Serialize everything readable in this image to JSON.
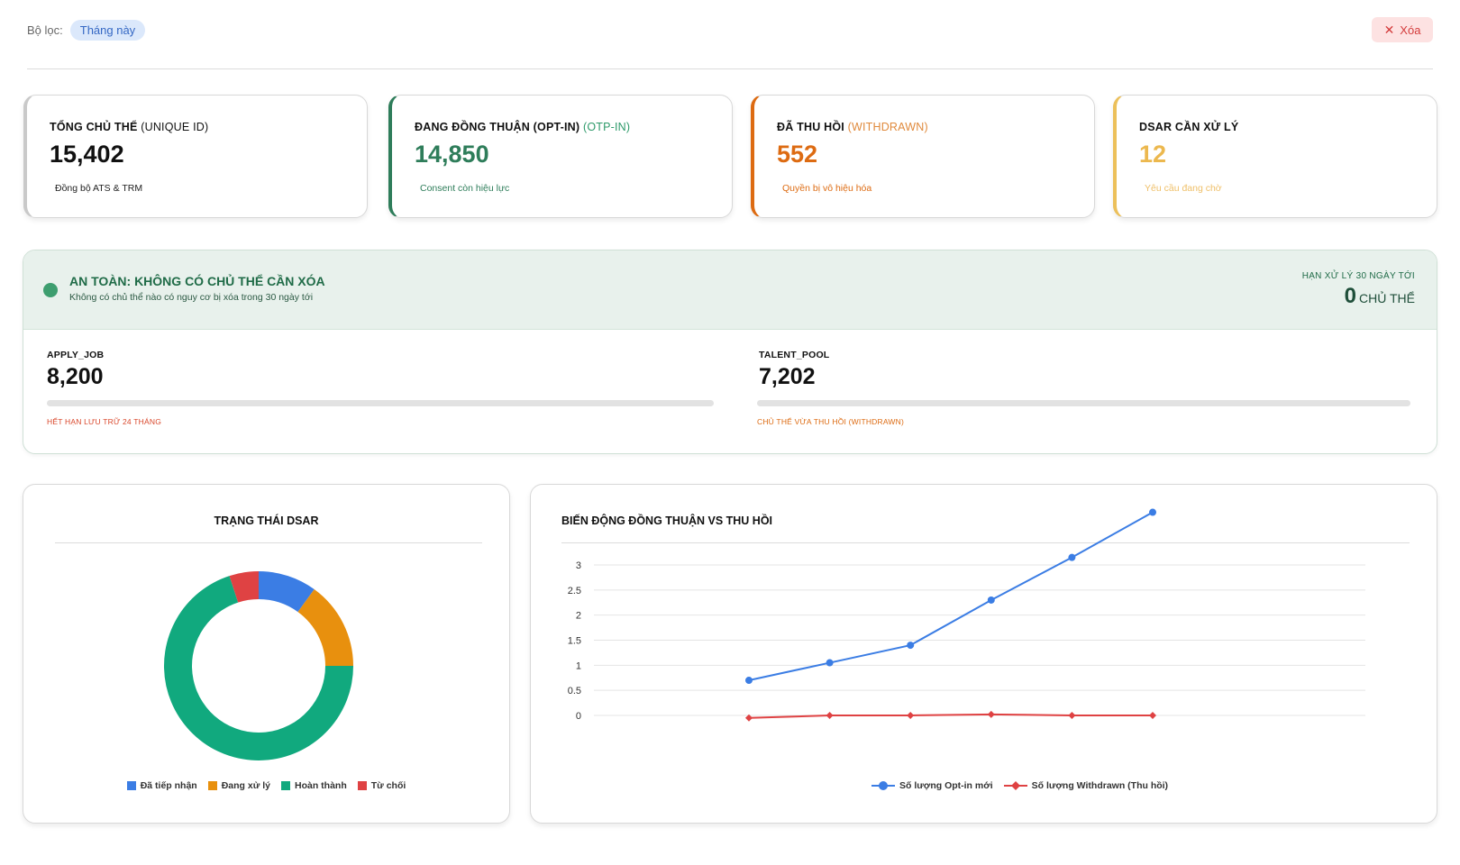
{
  "filter": {
    "label": "Bộ lọc:",
    "chip": "Tháng này",
    "clear_label": "Xóa"
  },
  "kpis": [
    {
      "title": "TỔNG CHỦ THỂ",
      "sub": "(UNIQUE ID)",
      "value": "15,402",
      "note": "Đồng bộ ATS & TRM",
      "color": "#111111",
      "sub_color": "#111111",
      "note_color": "#222222"
    },
    {
      "title": "ĐANG ĐỒNG THUẬN (OPT-IN)",
      "sub": "(OTP-IN)",
      "value": "14,850",
      "note": "Consent còn hiệu lực",
      "color": "#2e7d5a",
      "sub_color": "#2e9a6a",
      "note_color": "#2e7d5a"
    },
    {
      "title": "ĐÃ THU HỒI",
      "sub": "(WITHDRAWN)",
      "value": "552",
      "note": "Quyền bị vô hiệu hóa",
      "color": "#dd6b12",
      "sub_color": "#e08a3c",
      "note_color": "#dd6b12"
    },
    {
      "title": "DSAR CẦN XỬ LÝ",
      "sub": "",
      "value": "12",
      "note": "Yêu cầu đang chờ",
      "color": "#ecb84e",
      "sub_color": "#ecb84e",
      "note_color": "#efc06a"
    }
  ],
  "safety": {
    "title": "AN TOÀN: KHÔNG CÓ CHỦ THỂ CẦN XÓA",
    "subtitle": "Không có chủ thể nào có nguy cơ bị xóa trong 30 ngày tới",
    "deadline_label": "HẠN XỬ LÝ 30 NGÀY TỚI",
    "deadline_value": "0",
    "deadline_unit": "CHỦ THỂ",
    "segments": [
      {
        "label": "APPLY_JOB",
        "value": "8,200",
        "note": "HẾT HẠN LƯU TRỮ 24 THÁNG",
        "note_color": "#d9472b",
        "progress": 0
      },
      {
        "label": "TALENT_POOL",
        "value": "7,202",
        "note": "CHỦ THỂ VỪA THU HỒI (WITHDRAWN)",
        "note_color": "#dd6b12",
        "progress": 0
      }
    ]
  },
  "dsar_panel": {
    "title": "TRẠNG THÁI DSAR",
    "chart_data": {
      "type": "pie",
      "categories": [
        "Đã tiếp nhận",
        "Đang xử lý",
        "Hoàn thành",
        "Từ chối"
      ],
      "values": [
        10,
        15,
        70,
        5
      ],
      "colors": [
        "#3b7de4",
        "#e8900e",
        "#11a97e",
        "#df4243"
      ],
      "legend": "bottom"
    }
  },
  "trend_panel": {
    "title": "BIẾN ĐỘNG ĐỒNG THUẬN VS THU HỒI",
    "chart_data": {
      "type": "line",
      "x": [
        "",
        "",
        "",
        "",
        "",
        ""
      ],
      "yticks": [
        "0",
        "0.5",
        "1",
        "1.5",
        "2",
        "2.5",
        "3"
      ],
      "ylim": [
        0,
        3
      ],
      "grid": true,
      "legend": "bottom",
      "series": [
        {
          "name": "Số lượng Opt-in mới",
          "values": [
            0.7,
            1.05,
            1.4,
            2.3,
            3.15,
            4.05
          ],
          "color": "#3b7de4",
          "marker": "circle"
        },
        {
          "name": "Số lượng Withdrawn (Thu hồi)",
          "values": [
            -0.05,
            0.0,
            0.0,
            0.02,
            0.0,
            0.0
          ],
          "color": "#df4243",
          "marker": "diamond"
        }
      ]
    }
  }
}
